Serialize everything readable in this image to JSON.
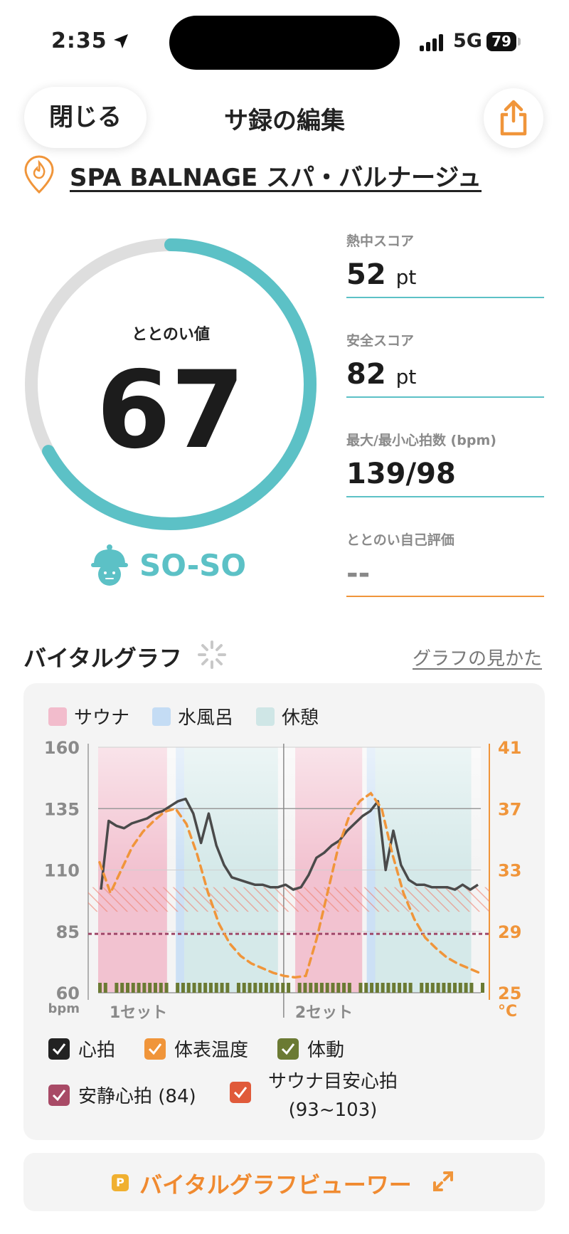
{
  "status_bar": {
    "time": "2:35",
    "network": "5G",
    "battery": "79"
  },
  "nav": {
    "close_label": "閉じる",
    "title": "サ録の編集"
  },
  "facility": {
    "name": "SPA BALNAGE スパ・バルナージュ"
  },
  "gauge": {
    "label": "ととのい値",
    "value": "67",
    "fraction": 0.67,
    "mood": "SO-SO",
    "colors": {
      "accent": "#5cc1c6",
      "track": "#dedede"
    }
  },
  "stats": [
    {
      "label": "熱中スコア",
      "value": "52",
      "unit": "pt"
    },
    {
      "label": "安全スコア",
      "value": "82",
      "unit": "pt"
    },
    {
      "label": "最大/最小心拍数 (bpm)",
      "value": "139/98",
      "unit": ""
    },
    {
      "label": "ととのい自己評価",
      "value": "--",
      "unit": ""
    }
  ],
  "vital_section": {
    "title": "バイタルグラフ",
    "help_link": "グラフの見かた"
  },
  "zone_legend": [
    {
      "label": "サウナ",
      "color": "#f2bccc"
    },
    {
      "label": "水風呂",
      "color": "#c4dcf4"
    },
    {
      "label": "休憩",
      "color": "#cfe6e6"
    }
  ],
  "chart_data": {
    "type": "line",
    "y_left": {
      "unit": "bpm",
      "ticks": [
        "160",
        "135",
        "110",
        "85",
        "60"
      ],
      "range": [
        60,
        160
      ]
    },
    "y_right": {
      "unit": "°C",
      "ticks": [
        "41",
        "37",
        "33",
        "29",
        "25"
      ],
      "range": [
        25,
        41
      ]
    },
    "x_labels": [
      "1セット",
      "2セット"
    ],
    "series": [
      {
        "name": "心拍",
        "color": "#4a4a4a",
        "values": [
          102,
          130,
          128,
          127,
          129,
          130,
          131,
          133,
          134,
          136,
          138,
          139,
          133,
          121,
          133,
          120,
          112,
          107,
          106,
          105,
          104,
          104,
          103,
          103,
          104,
          102,
          103,
          108,
          115,
          117,
          120,
          122,
          126,
          129,
          132,
          134,
          138,
          110,
          126,
          112,
          106,
          104,
          104,
          103,
          103,
          103,
          102,
          104,
          102,
          104
        ]
      },
      {
        "name": "体表温度",
        "color": "#f0953a",
        "values": [
          33.5,
          31.5,
          33.0,
          34.5,
          35.5,
          36.2,
          36.8,
          37.0,
          36.0,
          34.0,
          31.5,
          29.5,
          28.2,
          27.4,
          26.9,
          26.6,
          26.3,
          26.1,
          26.0,
          26.1,
          28.5,
          31.5,
          34.5,
          36.5,
          37.5,
          38.0,
          37.0,
          34.0,
          31.5,
          29.8,
          28.6,
          27.9,
          27.3,
          26.9,
          26.6,
          26.3
        ]
      }
    ],
    "reference_lines": {
      "resting_hr": 84,
      "sauna_target_range": [
        93,
        103
      ]
    },
    "zones": [
      {
        "type": "sauna",
        "from": 0.0,
        "to": 0.18
      },
      {
        "type": "cold",
        "from": 0.203,
        "to": 0.225
      },
      {
        "type": "rest",
        "from": 0.225,
        "to": 0.47
      },
      {
        "type": "sauna",
        "from": 0.515,
        "to": 0.69
      },
      {
        "type": "cold",
        "from": 0.702,
        "to": 0.724
      },
      {
        "type": "rest",
        "from": 0.724,
        "to": 0.975
      }
    ],
    "colors": {
      "sauna": "#f2bccc",
      "cold": "#c4dcf4",
      "rest": "#cfe6e6",
      "motion": "#6b7a33",
      "target": "#f08070",
      "resting": "#a04a6a"
    }
  },
  "series_checks": [
    {
      "label": "心拍",
      "color": "#222222"
    },
    {
      "label": "体表温度",
      "color": "#f0953a"
    },
    {
      "label": "体動",
      "color": "#6b7a33"
    },
    {
      "label": "安静心拍 (84)",
      "color": "#a84a66"
    },
    {
      "label": "サウナ目安心拍",
      "sub": "(93~103)",
      "color": "#e05a3a"
    }
  ],
  "viewer": {
    "badge": "P",
    "label": "バイタルグラフビューワー"
  }
}
